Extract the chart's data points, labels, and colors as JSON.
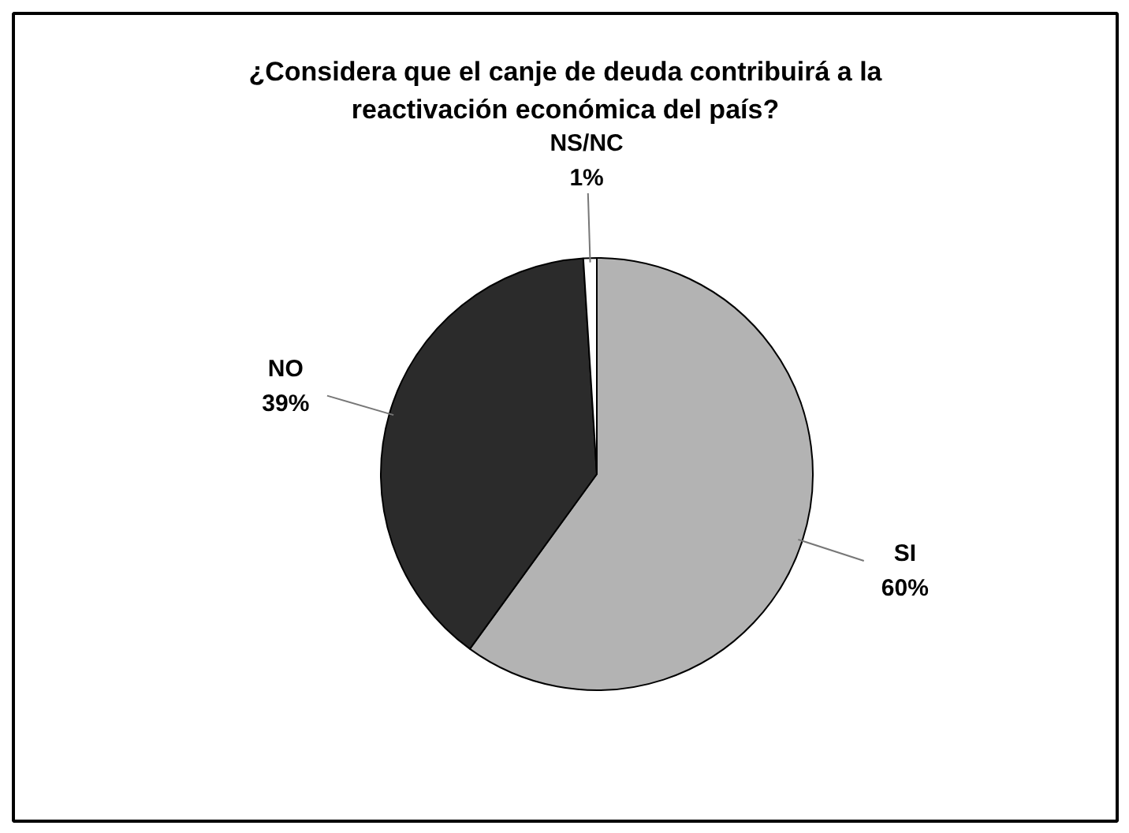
{
  "chart_data": {
    "type": "pie",
    "title": "¿Considera que el canje de deuda contribuirá a la reactivación económica del país?",
    "categories": [
      "SI",
      "NO",
      "NS/NC"
    ],
    "values": [
      60,
      39,
      1
    ],
    "colors": [
      "#b3b3b3",
      "#2b2b2b",
      "#ffffff"
    ],
    "value_labels": [
      "60%",
      "39%",
      "1%"
    ]
  }
}
